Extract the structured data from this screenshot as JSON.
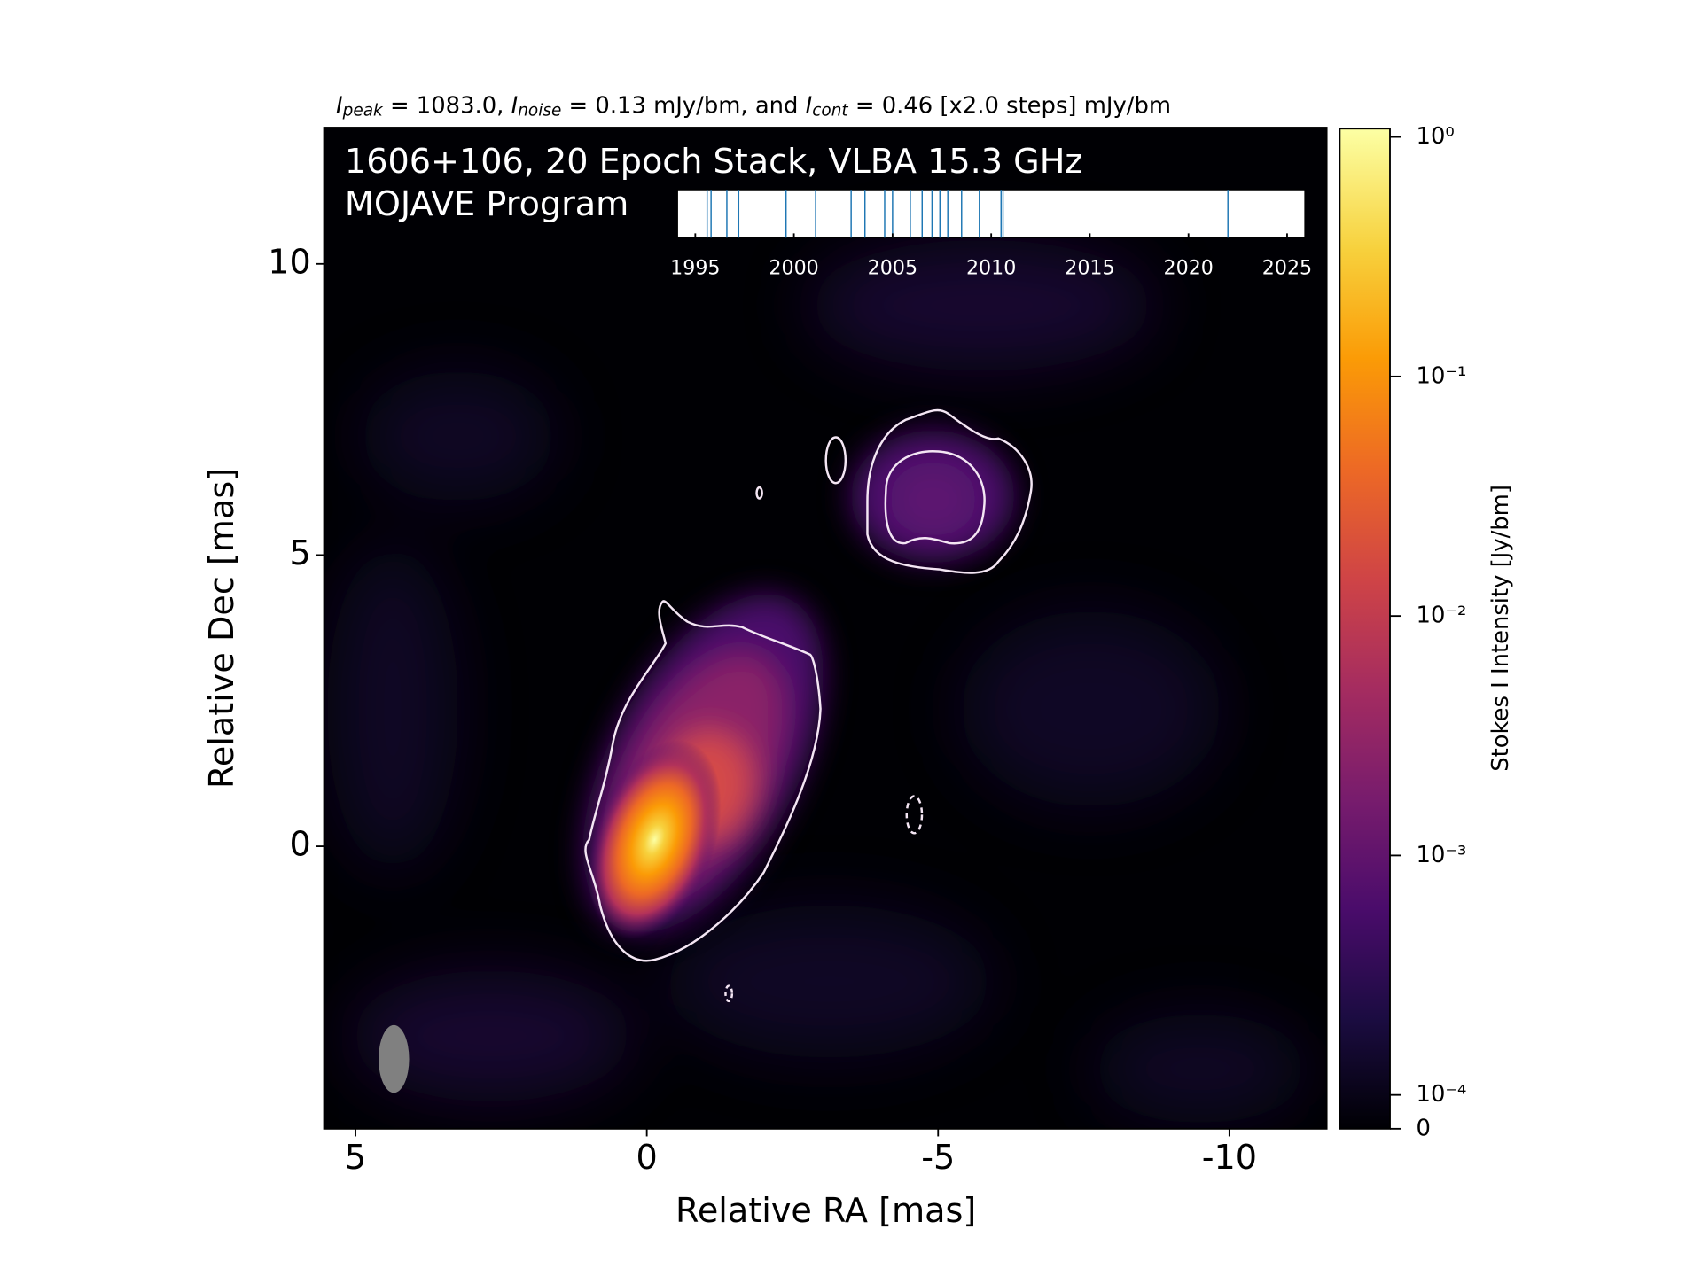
{
  "chart_data": {
    "type": "image",
    "title": [
      "I",
      "peak",
      " = 1083.0, ",
      "I",
      "noise",
      " = 0.13 mJy/bm, and ",
      "I",
      "cont",
      " = 0.46 [x2.0 steps] mJy/bm"
    ],
    "annotation": [
      "1606+106, 20 Epoch Stack, VLBA 15.3 GHz",
      "MOJAVE Program"
    ],
    "xlabel": "Relative RA [mas]",
    "ylabel": "Relative Dec [mas]",
    "xlim": [
      5.54,
      -11.67
    ],
    "ylim": [
      -4.85,
      12.34
    ],
    "xticks": [
      5,
      0,
      -5,
      -10
    ],
    "yticks": [
      0,
      5,
      10
    ],
    "colorbar": {
      "label": "Stokes I Intensity [Jy/bm]",
      "scale": "symlog",
      "linthresh": 0.0001,
      "clim": [
        0,
        1.083
      ],
      "ticks": [
        0,
        {
          "value": 0.0001,
          "label": "10⁻⁴"
        },
        {
          "value": 0.001,
          "label": "10⁻³"
        },
        {
          "value": 0.01,
          "label": "10⁻²"
        },
        {
          "value": 0.1,
          "label": "10⁻¹"
        },
        {
          "value": 1,
          "label": "10⁰"
        }
      ]
    },
    "inset": {
      "type": "timeline",
      "color": "#1f77b4",
      "x": [
        1995.6,
        1995.8,
        1996.6,
        1997.2,
        1999.6,
        2001.1,
        2002.9,
        2003.6,
        2004.6,
        2005.0,
        2005.9,
        2006.5,
        2007.0,
        2007.4,
        2007.8,
        2008.5,
        2009.4,
        2010.5,
        2010.6,
        2022.0
      ],
      "xlim": [
        1994.1,
        2025.9
      ],
      "xticks": [
        1995,
        2000,
        2005,
        2010,
        2015,
        2020,
        2025
      ]
    }
  }
}
